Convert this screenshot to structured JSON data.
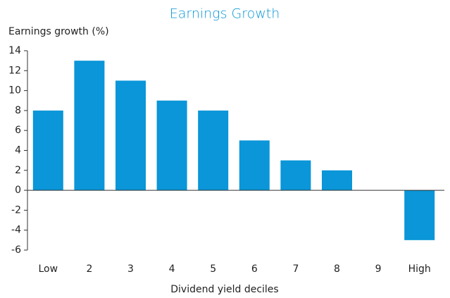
{
  "chart_data": {
    "type": "bar",
    "title": "Earnings Growth",
    "y_axis_label": "Earnings growth (%)",
    "x_axis_label": "Dividend yield deciles",
    "categories": [
      "Low",
      "2",
      "3",
      "4",
      "5",
      "6",
      "7",
      "8",
      "9",
      "High"
    ],
    "values": [
      8,
      13,
      11,
      9,
      8,
      5,
      3,
      2,
      0,
      -5
    ],
    "color": "#0a96d8",
    "ylim": [
      -6,
      14
    ],
    "yticks": [
      -6,
      -4,
      -2,
      0,
      2,
      4,
      6,
      8,
      10,
      12,
      14
    ],
    "grid": false
  }
}
